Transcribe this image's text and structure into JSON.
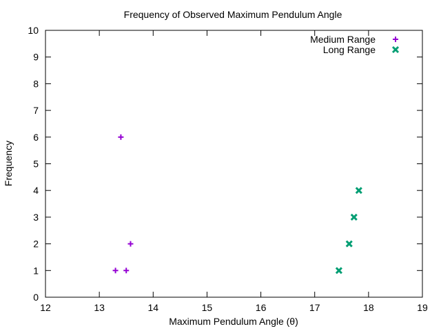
{
  "chart_data": {
    "type": "scatter",
    "title": "Frequency of Observed Maximum Pendulum Angle",
    "xlabel": "Maximum Pendulum Angle (θ)",
    "ylabel": "Frequency",
    "xlim": [
      12,
      19
    ],
    "ylim": [
      0,
      10
    ],
    "xticks": [
      12,
      13,
      14,
      15,
      16,
      17,
      18,
      19
    ],
    "yticks": [
      0,
      1,
      2,
      3,
      4,
      5,
      6,
      7,
      8,
      9,
      10
    ],
    "grid": false,
    "legend_position": "top-right",
    "series": [
      {
        "name": "Medium Range",
        "marker": "plus",
        "color": "#9400d3",
        "points": [
          [
            13.3,
            1
          ],
          [
            13.4,
            6
          ],
          [
            13.5,
            1
          ],
          [
            13.58,
            2
          ]
        ]
      },
      {
        "name": "Long Range",
        "marker": "x",
        "color": "#009e73",
        "points": [
          [
            17.45,
            1
          ],
          [
            17.64,
            2
          ],
          [
            17.73,
            3
          ],
          [
            17.82,
            4
          ]
        ]
      }
    ]
  }
}
